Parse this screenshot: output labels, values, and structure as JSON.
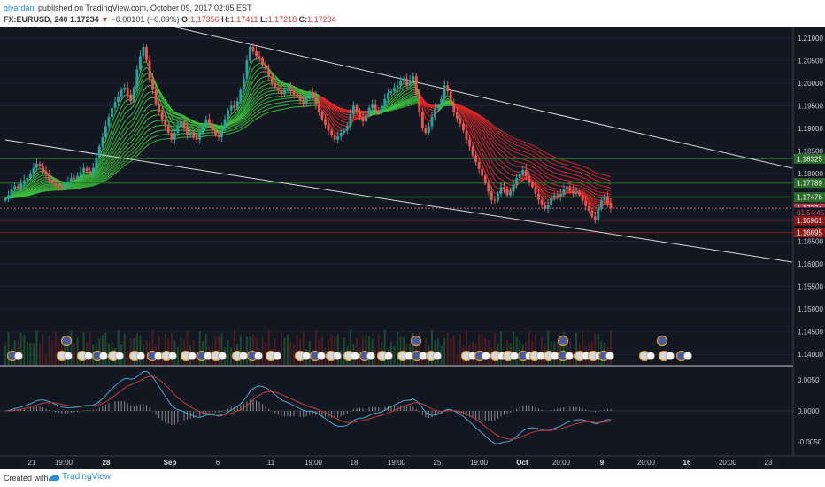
{
  "header": {
    "author": "glyardani",
    "published": "published on TradingView.com, October 09, 2017 02:05 EST",
    "symbol": "FX:EURUSD, 240",
    "price": "1.17234",
    "change_arrow": "▼",
    "change": "−0.00101 (−0.09%)",
    "o_label": "O:",
    "o_value": "1.17356",
    "h_label": "H:",
    "h_value": "1.17411",
    "l_label": "L:",
    "l_value": "1.17218",
    "c_label": "C:",
    "c_value": "1.17234"
  },
  "footer": {
    "created": "Created with",
    "brand": "TradingView"
  },
  "colors": {
    "background": "#131722",
    "bull": "#26a69a",
    "bear": "#ef5350",
    "ribbon_green": "#3ec43e",
    "ribbon_red": "#e02828",
    "channel": "#d8d8d8",
    "green_level": "#1e7a1e",
    "red_level": "#8a1a1a"
  },
  "chart_data": {
    "type": "candlestick",
    "symbol": "FX:EURUSD",
    "timeframe": "240",
    "price_axis": {
      "ylim": [
        1.1375,
        1.2125
      ],
      "ticks": [
        "1.21000",
        "1.20500",
        "1.20000",
        "1.19500",
        "1.19000",
        "1.18500",
        "1.18000",
        "1.17500",
        "1.17000",
        "1.16500",
        "1.16000",
        "1.15500",
        "1.15000",
        "1.14500",
        "1.14000"
      ]
    },
    "x_axis": {
      "ticks": [
        "21",
        "19:00",
        "28",
        "Sep",
        "6",
        "11",
        "19:00",
        "18",
        "19:00",
        "25",
        "19:00",
        "Oct",
        "20:00",
        "9",
        "20:00",
        "16",
        "20:00",
        "23"
      ],
      "bold": [
        "28",
        "Sep",
        "Oct",
        "9",
        "16"
      ]
    },
    "price_labels": [
      {
        "value": 1.18325,
        "text": "1.18325",
        "kind": "green"
      },
      {
        "value": 1.17789,
        "text": "1.17789",
        "kind": "green"
      },
      {
        "value": 1.17476,
        "text": "1.17476",
        "kind": "green"
      },
      {
        "value": 1.17234,
        "text": "1.17234",
        "kind": "current"
      },
      {
        "value": 1.1714,
        "text": "01:54:45",
        "kind": "timer"
      },
      {
        "value": 1.16961,
        "text": "1.16961",
        "kind": "red"
      },
      {
        "value": 1.16695,
        "text": "1.16695",
        "kind": "red"
      }
    ],
    "macd": {
      "ylim": [
        -0.007,
        0.007
      ],
      "ticks": [
        "0.0050",
        "0.0000",
        "-0.0050"
      ]
    },
    "closes": [
      1.1745,
      1.1752,
      1.1765,
      1.1772,
      1.1768,
      1.1778,
      1.1785,
      1.179,
      1.18,
      1.1812,
      1.1822,
      1.1815,
      1.1805,
      1.1798,
      1.1785,
      1.1778,
      1.1775,
      1.177,
      1.1768,
      1.1775,
      1.1782,
      1.179,
      1.1788,
      1.1795,
      1.1803,
      1.1812,
      1.1805,
      1.18,
      1.1812,
      1.1835,
      1.186,
      1.188,
      1.1905,
      1.1925,
      1.1945,
      1.1958,
      1.197,
      1.1985,
      1.199,
      1.1975,
      1.196,
      1.199,
      1.203,
      1.206,
      1.208,
      1.205,
      1.201,
      1.1985,
      1.1955,
      1.1935,
      1.192,
      1.1905,
      1.189,
      1.1875,
      1.189,
      1.1905,
      1.1915,
      1.19,
      1.1885,
      1.189,
      1.188,
      1.1875,
      1.189,
      1.1905,
      1.192,
      1.191,
      1.1895,
      1.1885,
      1.188,
      1.19,
      1.192,
      1.194,
      1.195,
      1.1945,
      1.196,
      1.1985,
      1.201,
      1.205,
      1.208,
      1.207,
      1.206,
      1.2055,
      1.204,
      1.203,
      1.2015,
      1.2,
      1.199,
      1.1985,
      1.1975,
      1.1985,
      1.199,
      1.1982,
      1.1975,
      1.197,
      1.196,
      1.1955,
      1.1965,
      1.198,
      1.197,
      1.1952,
      1.1935,
      1.192,
      1.1908,
      1.1895,
      1.1885,
      1.1875,
      1.1882,
      1.189,
      1.1895,
      1.1905,
      1.193,
      1.195,
      1.1935,
      1.1925,
      1.1915,
      1.193,
      1.1945,
      1.1952,
      1.194,
      1.1935,
      1.195,
      1.1965,
      1.1978,
      1.1982,
      1.199,
      1.1995,
      1.2005,
      1.201,
      1.1995,
      1.2005,
      1.2015,
      1.1975,
      1.1935,
      1.1902,
      1.189,
      1.1905,
      1.1925,
      1.1945,
      1.195,
      1.1965,
      1.1995,
      1.1982,
      1.1955,
      1.1935,
      1.1922,
      1.191,
      1.1895,
      1.1875,
      1.186,
      1.184,
      1.1825,
      1.181,
      1.1795,
      1.1778,
      1.176,
      1.1742,
      1.174,
      1.1755,
      1.177,
      1.1765,
      1.1752,
      1.176,
      1.1775,
      1.179,
      1.18,
      1.1808,
      1.1795,
      1.178,
      1.177,
      1.1755,
      1.1742,
      1.173,
      1.1722,
      1.173,
      1.1745,
      1.1752,
      1.1748,
      1.1755,
      1.1765,
      1.177,
      1.1762,
      1.1755,
      1.176,
      1.1752,
      1.174,
      1.1728,
      1.1718,
      1.1705,
      1.1698,
      1.1722,
      1.174,
      1.1748,
      1.1735,
      1.1723
    ]
  }
}
